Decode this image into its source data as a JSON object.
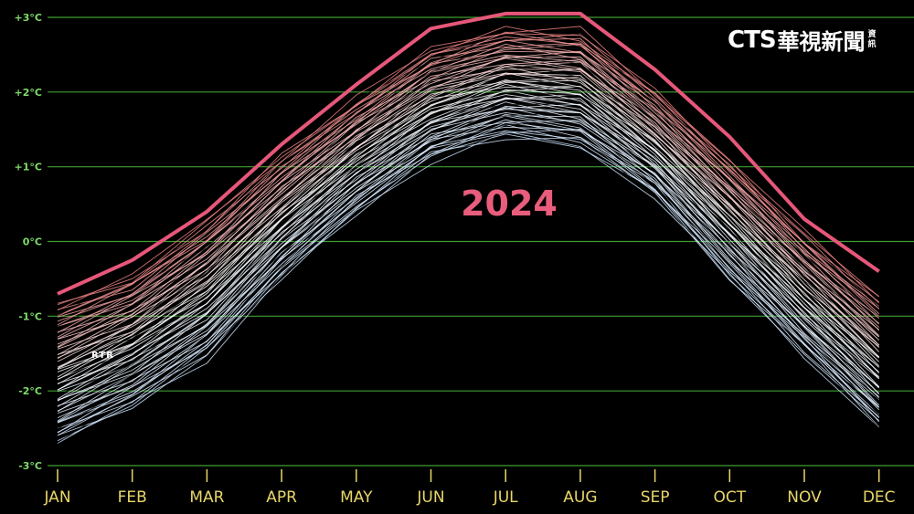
{
  "watermark": {
    "brand_latin": "CTS",
    "brand_cjk": "華視新聞",
    "brand_small": [
      "資",
      "訊"
    ]
  },
  "annotation": {
    "year_label": "2024",
    "source_tag": "RTR"
  },
  "colors": {
    "highlight": "#e6577a",
    "grid": "#3f9e32",
    "ytick": "#7fdc6a",
    "xtick": "#e8d66a",
    "old": "#cfe6ff",
    "mid": "#ffffff",
    "recent": "#f08080"
  },
  "chart_data": {
    "type": "line",
    "title": "",
    "xlabel": "",
    "ylabel": "",
    "categories": [
      "JAN",
      "FEB",
      "MAR",
      "APR",
      "MAY",
      "JUN",
      "JUL",
      "AUG",
      "SEP",
      "OCT",
      "NOV",
      "DEC"
    ],
    "ylim": [
      -3,
      3
    ],
    "yticks": [
      3,
      2,
      1,
      0,
      -1,
      -2,
      -3
    ],
    "ytick_labels": [
      "+3°C",
      "+2°C",
      "+1°C",
      "0°C",
      "-1°C",
      "-2°C",
      "-3°C"
    ],
    "grid": true,
    "highlight_series": {
      "name": "2024",
      "values": [
        -0.7,
        -0.25,
        0.4,
        1.3,
        2.1,
        2.85,
        3.05,
        3.05,
        2.3,
        1.4,
        0.3,
        -0.4
      ]
    },
    "ensemble_bounds": {
      "lowest": [
        -2.7,
        -2.2,
        -1.55,
        -0.5,
        0.4,
        1.1,
        1.4,
        1.3,
        0.6,
        -0.5,
        -1.5,
        -2.5
      ],
      "highest": [
        -0.85,
        -0.45,
        0.25,
        1.15,
        1.9,
        2.55,
        2.85,
        2.8,
        2.0,
        1.1,
        0.1,
        -0.75
      ]
    }
  }
}
